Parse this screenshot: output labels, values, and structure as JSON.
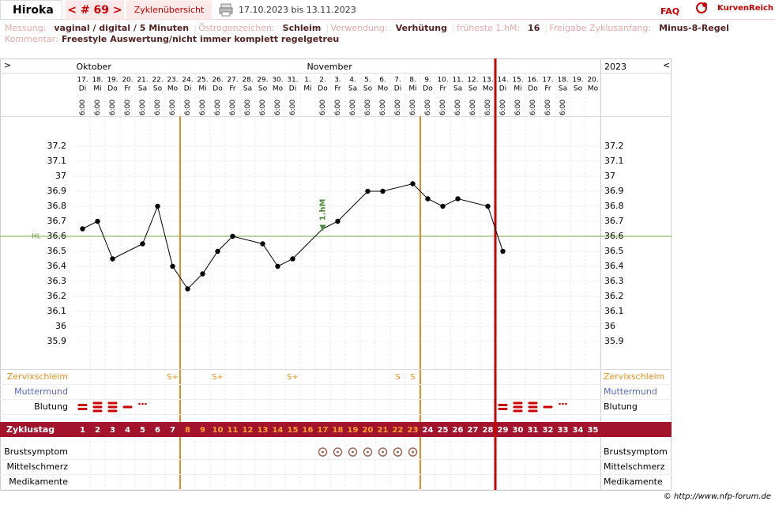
{
  "header": {
    "user": "Hiroka",
    "cycle_nav": "< # 69 >",
    "overview": "Zyklenübersicht",
    "date_range": "17.10.2023 bis 13.11.2023",
    "faq": "FAQ",
    "brand": "KurvenReich"
  },
  "info": {
    "items": [
      {
        "label": "Messung:",
        "value": "vaginal / digital / 5 Minuten"
      },
      {
        "label": "Östrogenzeichen:",
        "value": "Schleim"
      },
      {
        "label": "Verwendung:",
        "value": "Verhütung"
      },
      {
        "label": "früheste 1.hM:",
        "value": "16"
      },
      {
        "label": "Freigabe Zyklusanfang:",
        "value": "Minus-8-Regel"
      }
    ],
    "comment_label": "Kommentar:",
    "comment": "Freestyle Auswertung/nicht immer komplett regelgetreu"
  },
  "chart_data": {
    "type": "line",
    "left_nav": ">",
    "right_nav": "<",
    "year": "2023",
    "months": [
      {
        "label": "Oktober",
        "day": 1
      },
      {
        "label": "November",
        "day": 17
      }
    ],
    "dates": [
      "17.",
      "18.",
      "19.",
      "20.",
      "21.",
      "22.",
      "23.",
      "24.",
      "25.",
      "26.",
      "27.",
      "28.",
      "29.",
      "30.",
      "31.",
      "1.",
      "2.",
      "3.",
      "4.",
      "5.",
      "6.",
      "7.",
      "8.",
      "9.",
      "10.",
      "11.",
      "12.",
      "13.",
      "14.",
      "15.",
      "16.",
      "17.",
      "18.",
      "19.",
      "20."
    ],
    "weekdays": [
      "Di",
      "Mi",
      "Do",
      "Fr",
      "Sa",
      "So",
      "Mo",
      "Di",
      "Mi",
      "Do",
      "Fr",
      "Sa",
      "So",
      "Mo",
      "Di",
      "Mi",
      "Do",
      "Fr",
      "Sa",
      "So",
      "Mo",
      "Di",
      "Mi",
      "Do",
      "Fr",
      "Sa",
      "So",
      "Mo",
      "Di",
      "Mi",
      "Do",
      "Fr",
      "Sa",
      "So",
      "Mo"
    ],
    "times": [
      "6:00",
      "6:00",
      "6:00",
      "6:00",
      "6:00",
      "6:00",
      "6:00",
      "6:00",
      "6:00",
      "6:00",
      "6:00",
      "6:00",
      "6:00",
      "6:00",
      "6:00",
      null,
      "6:00",
      "6:00",
      "6:00",
      "6:00",
      "6:00",
      "6:00",
      "6:00",
      "6:00",
      "6:00",
      "6:00",
      "6:00",
      "6:00",
      "6:00",
      "6:00",
      "6:00",
      "6:00",
      "6:00",
      null,
      null
    ],
    "x": [
      1,
      2,
      3,
      5,
      6,
      7,
      8,
      9,
      10,
      11,
      13,
      14,
      15,
      17,
      18,
      20,
      21,
      23,
      24,
      25,
      26,
      28,
      29
    ],
    "values": [
      36.65,
      36.7,
      36.45,
      36.55,
      36.8,
      36.4,
      36.25,
      36.35,
      36.5,
      36.6,
      36.55,
      36.4,
      36.45,
      36.65,
      36.7,
      36.9,
      36.9,
      36.95,
      36.85,
      36.8,
      36.85,
      36.8,
      36.5
    ],
    "color": "#000000",
    "ylim": [
      35.9,
      37.2
    ],
    "yticks": [
      35.9,
      36,
      36.1,
      36.2,
      36.3,
      36.4,
      36.5,
      36.6,
      36.7,
      36.8,
      36.9,
      37,
      37.1,
      37.2
    ],
    "hl": 36.6,
    "hl_label": "HL",
    "first_hm_day": 17,
    "first_hm_label": "1.hM",
    "highlight_range": [
      8,
      23
    ],
    "next_cycle_start": 29,
    "cycle_label": "Zyklustag",
    "cycle_days": [
      1,
      2,
      3,
      4,
      5,
      6,
      7,
      8,
      9,
      10,
      11,
      12,
      13,
      14,
      15,
      16,
      17,
      18,
      19,
      20,
      21,
      22,
      23,
      24,
      25,
      26,
      27,
      28,
      29,
      30,
      31,
      32,
      33,
      34,
      35
    ],
    "rows": {
      "mucus": "Zervixschleim",
      "cervix": "Muttermund",
      "bleeding": "Blutung",
      "breast": "Brustsymptom",
      "midpain": "Mittelschmerz",
      "meds": "Medikamente"
    },
    "mucus": {
      "days": [
        7,
        10,
        15,
        22,
        23
      ],
      "labels": [
        "S+",
        "S+",
        "S+",
        "S",
        "S"
      ]
    },
    "bleeding": {
      "days": [
        1,
        2,
        3,
        4,
        5,
        29,
        30,
        31,
        32,
        33
      ],
      "values": [
        2,
        3,
        3,
        1,
        0.5,
        2,
        3,
        3,
        1,
        0.5
      ]
    },
    "breast_days": [
      17,
      18,
      19,
      20,
      21,
      22,
      23
    ],
    "footer": "© http://www.nfp-forum.de"
  }
}
